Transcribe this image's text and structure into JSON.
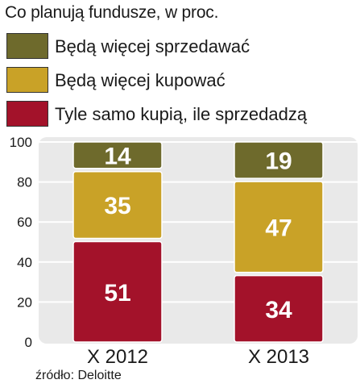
{
  "header": {
    "title": "Co planują fundusze, w proc."
  },
  "legend": [
    {
      "label": "Będą więcej sprzedawać",
      "color": "#6e6a2c"
    },
    {
      "label": "Będą więcej kupować",
      "color": "#c9a227"
    },
    {
      "label": "Tyle samo kupią, ile sprzedadzą",
      "color": "#a3122a"
    }
  ],
  "source": "źródło: Deloitte",
  "colors": {
    "panel_background": "#e9e9e9",
    "gridline": "#ffffff",
    "segment_label": "#ffffff"
  },
  "chart_data": {
    "type": "bar",
    "stacked": true,
    "categories": [
      "X 2012",
      "X 2013"
    ],
    "series": [
      {
        "name": "Tyle samo kupią, ile sprzedadzą",
        "values": [
          51,
          34
        ]
      },
      {
        "name": "Będą więcej kupować",
        "values": [
          35,
          47
        ]
      },
      {
        "name": "Będą więcej sprzedawać",
        "values": [
          14,
          19
        ]
      }
    ],
    "y_ticks": [
      0,
      20,
      40,
      60,
      80,
      100
    ],
    "ylim": [
      0,
      100
    ],
    "grid": true,
    "legend_position": "top"
  }
}
